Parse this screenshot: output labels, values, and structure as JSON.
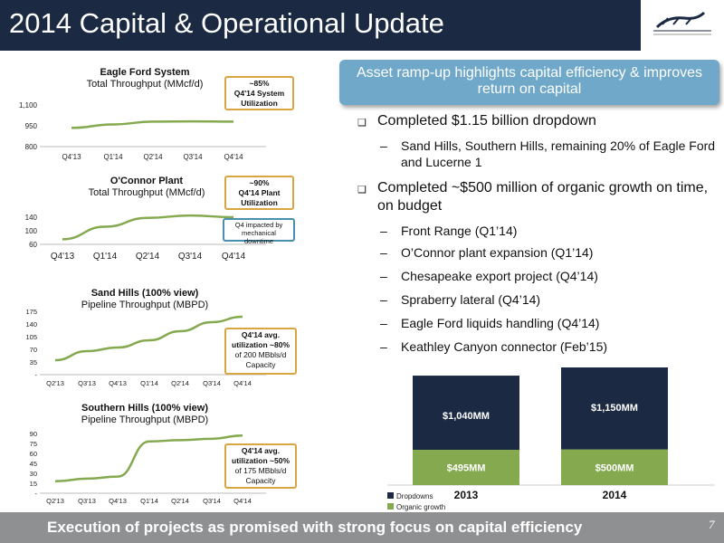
{
  "header": {
    "title": "2014 Capital & Operational Update"
  },
  "footer": {
    "text": "Execution of projects as promised with strong focus on capital efficiency",
    "page": "7"
  },
  "banner": {
    "text": "Asset ramp-up highlights capital efficiency & improves return on capital"
  },
  "bullets": [
    {
      "level": 1,
      "text": "Completed $1.15 billion dropdown"
    },
    {
      "level": 2,
      "text": "Sand Hills, Southern Hills, remaining 20% of Eagle Ford and Lucerne 1"
    },
    {
      "level": 1,
      "text": "Completed ~$500 million of organic growth on time, on budget"
    },
    {
      "level": 2,
      "text": "Front Range (Q1’14)"
    },
    {
      "level": 2,
      "text": "O’Connor plant expansion (Q1’14)"
    },
    {
      "level": 2,
      "text": "Chesapeake export project (Q4’14)"
    },
    {
      "level": 2,
      "text": "Spraberry lateral (Q4’14)"
    },
    {
      "level": 2,
      "text": "Eagle Ford liquids handling (Q4’14)"
    },
    {
      "level": 2,
      "text": "Keathley Canyon connector (Feb’15)"
    }
  ],
  "colors": {
    "header": "#1b2a42",
    "line": "#84a94f",
    "dropdowns": "#1b2a42",
    "organic": "#84a94f",
    "annotation_border": "#d9a441",
    "banner": "#6fa8c8"
  },
  "chart_data": [
    {
      "type": "line",
      "title": "Eagle Ford System",
      "subtitle": "Total Throughput (MMcf/d)",
      "categories": [
        "Q4'13",
        "Q1'14",
        "Q2'14",
        "Q3'14",
        "Q4'14"
      ],
      "values": [
        935,
        960,
        980,
        982,
        980
      ],
      "ylim": [
        800,
        1100
      ],
      "yticks": [
        "800",
        "950",
        "1,100"
      ],
      "annotations": [
        "~85%",
        "Q4'14 System",
        "Utilization"
      ]
    },
    {
      "type": "line",
      "title": "O'Connor Plant",
      "subtitle": "Total Throughput (MMcf/d)",
      "categories": [
        "Q4'13",
        "Q1'14",
        "Q2'14",
        "Q3'14",
        "Q4'14"
      ],
      "values": [
        75,
        112,
        138,
        145,
        140
      ],
      "ylim": [
        60,
        140
      ],
      "yticks": [
        "60",
        "100",
        "140"
      ],
      "annotations": [
        "~90%",
        "Q4'14 Plant",
        "Utilization"
      ],
      "note": "Q4 impacted by mechanical downtime"
    },
    {
      "type": "line",
      "title": "Sand Hills (100% view)",
      "subtitle": "Pipeline Throughput (MBPD)",
      "categories": [
        "Q2'13",
        "Q3'13",
        "Q4'13",
        "Q1'14",
        "Q2'14",
        "Q3'14",
        "Q4'14"
      ],
      "values": [
        40,
        65,
        75,
        95,
        120,
        145,
        160
      ],
      "ylim": [
        0,
        175
      ],
      "yticks": [
        "-",
        "35",
        "70",
        "105",
        "140",
        "175"
      ],
      "annotations": [
        "Q4'14 avg.",
        "utilization ~80%",
        "of 200 MBbls/d",
        "Capacity"
      ]
    },
    {
      "type": "line",
      "title": "Southern Hills (100% view)",
      "subtitle": "Pipeline Throughput (MBPD)",
      "categories": [
        "Q2'13",
        "Q3'13",
        "Q4'13",
        "Q1'14",
        "Q2'14",
        "Q3'14",
        "Q4'14"
      ],
      "values": [
        18,
        22,
        25,
        78,
        80,
        82,
        87
      ],
      "ylim": [
        0,
        90
      ],
      "yticks": [
        "-",
        "15",
        "30",
        "45",
        "60",
        "75",
        "90"
      ],
      "annotations": [
        "Q4'14 avg.",
        "utilization ~50%",
        "of 175 MBbls/d",
        "Capacity"
      ]
    },
    {
      "type": "bar",
      "stacked": true,
      "categories": [
        "2013",
        "2014"
      ],
      "series": [
        {
          "name": "Organic growth",
          "values": [
            495,
            500
          ],
          "labels": [
            "$495MM",
            "$500MM"
          ]
        },
        {
          "name": "Dropdowns",
          "values": [
            1040,
            1150
          ],
          "labels": [
            "$1,040MM",
            "$1,150MM"
          ]
        }
      ],
      "legend": "bottom-left"
    }
  ]
}
